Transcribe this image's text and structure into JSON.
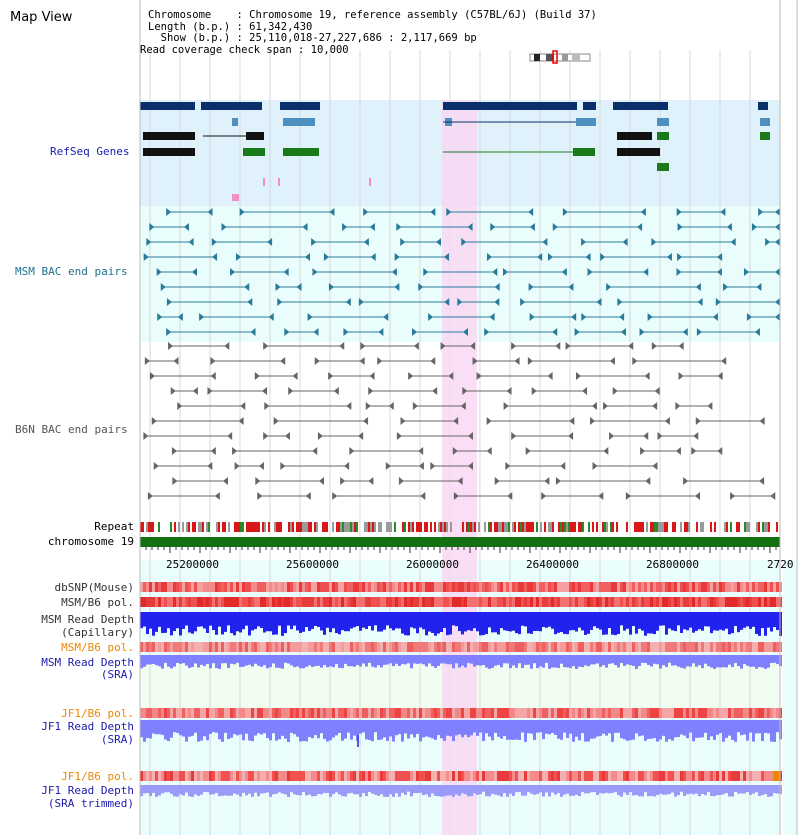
{
  "title": "Map View",
  "info": {
    "chromosome": "Chromosome    : Chromosome 19, reference assembly (C57BL/6J) (Build 37)",
    "length": "Length (b.p.) : 61,342,430",
    "show": "  Show (b.p.) : 25,110,018-27,227,686 : 2,117,669 bp",
    "coverage": "Read coverage check span : 10,000"
  },
  "tracks": {
    "refseq": "RefSeq Genes",
    "msm_bac": "MSM BAC end pairs",
    "b6n_bac": "B6N BAC end pairs",
    "repeat": "Repeat",
    "chromosome": "chromosome 19",
    "dbsnp": "dbSNP(Mouse)",
    "msm_pol": "MSM/B6 pol.",
    "msm_depth_cap_1": "MSM Read Depth",
    "msm_depth_cap_2": "(Capillary)",
    "msm_pol2": "MSM/B6 pol.",
    "msm_depth_sra_1": "MSM Read Depth",
    "msm_depth_sra_2": "(SRA)",
    "jf1_pol": "JF1/B6 pol.",
    "jf1_depth_1": "JF1 Read Depth",
    "jf1_depth_2": "(SRA)",
    "jf1_pol2": "JF1/B6 pol.",
    "jf1_trim_1": "JF1 Read Depth",
    "jf1_trim_2": "(SRA trimmed)"
  },
  "axis": {
    "ticks": [
      "25200000",
      "25600000",
      "26000000",
      "26400000",
      "26800000",
      "2720"
    ]
  },
  "colors": {
    "refseq_bg": "#dff2fb",
    "msm_bg": "#eafdfd",
    "lower_bg": "#eafdfd",
    "sra_bg": "#f0fdf0",
    "highlight": "#f8d8f3",
    "gene_navy": "#0b2f6b",
    "gene_steel": "#4f8fbf",
    "gene_green": "#1a7a1a",
    "msm_feat": "#2a7a9a",
    "b6n_feat": "#666666",
    "label_navy": "#1a1ab0",
    "label_teal": "#207090",
    "label_orange": "#ee8800",
    "depth_blue": "#2222ee",
    "depth_light": "#8080ff"
  }
}
